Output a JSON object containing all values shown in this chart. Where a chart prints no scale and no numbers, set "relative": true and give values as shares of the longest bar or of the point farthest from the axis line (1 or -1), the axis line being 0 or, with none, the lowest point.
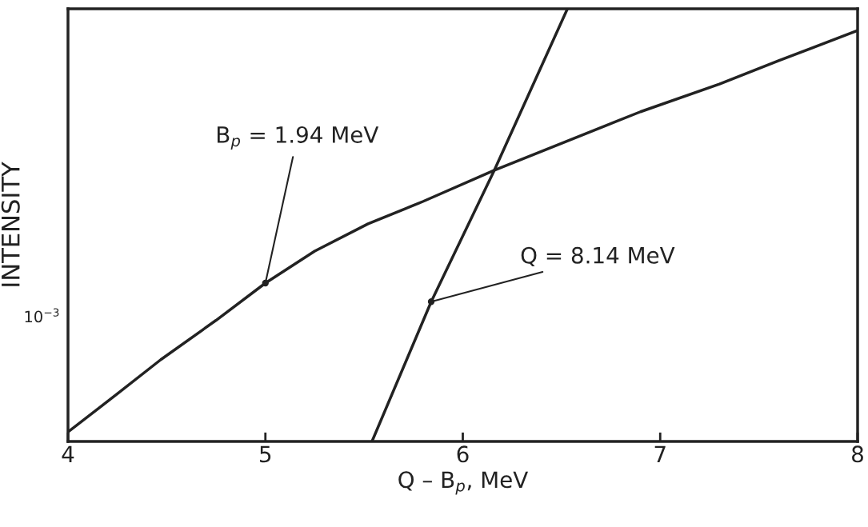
{
  "chart_data": {
    "type": "line",
    "xlabel": "Q – B$_{p}$, MeV",
    "ylabel": "INTENSITY",
    "relative": true,
    "series": [
      {
        "color": "#222222",
        "x": [
          4.0,
          4.25,
          4.47,
          4.75,
          5.0,
          5.25,
          5.52,
          5.8,
          6.16,
          6.9,
          7.3,
          7.6,
          8.0
        ],
        "values": [
          0.022,
          0.11,
          0.189,
          0.28,
          0.366,
          0.44,
          0.503,
          0.555,
          0.627,
          0.762,
          0.826,
          0.88,
          0.95
        ]
      },
      {
        "color": "#222222",
        "x": [
          5.54,
          5.84,
          6.16,
          6.53
        ],
        "values": [
          0.0,
          0.323,
          0.627,
          1.0
        ]
      }
    ],
    "annotations": [
      {
        "text": "B$_{p}$ = 1.94 MeV",
        "x": 5.0,
        "y": 0.366
      },
      {
        "text": "Q = 8.14 MeV",
        "x": 5.84,
        "y": 0.323
      },
      "10$^{−3}$"
    ],
    "xlim": [
      4,
      8
    ],
    "xticks": [
      4,
      5,
      6,
      7,
      8
    ],
    "grid": false,
    "legend": false
  }
}
